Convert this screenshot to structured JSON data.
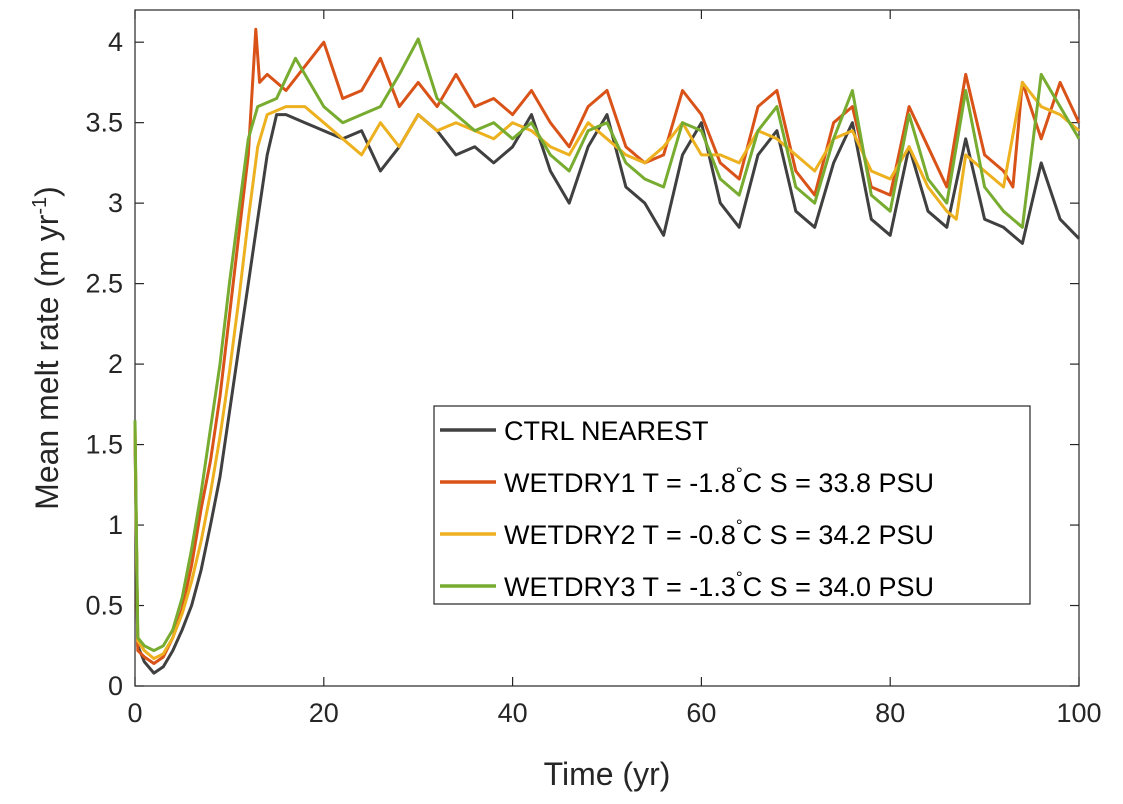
{
  "chart_data": {
    "type": "line",
    "title": "",
    "xlabel": "Time (yr)",
    "ylabel": "Mean melt rate (m yr",
    "ylabel_sup": "-1",
    "ylabel_close": ")",
    "xlim": [
      0,
      100
    ],
    "ylim": [
      0,
      4.2
    ],
    "xticks": [
      0,
      20,
      40,
      60,
      80,
      100
    ],
    "yticks": [
      0,
      0.5,
      1,
      1.5,
      2,
      2.5,
      3,
      3.5,
      4
    ],
    "xtick_labels": [
      "0",
      "20",
      "40",
      "60",
      "80",
      "100"
    ],
    "ytick_labels": [
      "0",
      "0.5",
      "1",
      "1.5",
      "2",
      "2.5",
      "3",
      "3.5",
      "4"
    ],
    "grid": false,
    "legend_position": "lower-right",
    "series": [
      {
        "name": "CTRL NEAREST",
        "color": "#404040",
        "points": [
          [
            0,
            1.55
          ],
          [
            0.3,
            0.25
          ],
          [
            1,
            0.15
          ],
          [
            2,
            0.08
          ],
          [
            3,
            0.12
          ],
          [
            4,
            0.22
          ],
          [
            5,
            0.35
          ],
          [
            6,
            0.5
          ],
          [
            7,
            0.72
          ],
          [
            8,
            1.0
          ],
          [
            9,
            1.3
          ],
          [
            10,
            1.7
          ],
          [
            11,
            2.1
          ],
          [
            12,
            2.5
          ],
          [
            13,
            2.9
          ],
          [
            14,
            3.3
          ],
          [
            15,
            3.55
          ],
          [
            16,
            3.55
          ],
          [
            18,
            3.5
          ],
          [
            20,
            3.45
          ],
          [
            22,
            3.4
          ],
          [
            24,
            3.45
          ],
          [
            26,
            3.2
          ],
          [
            28,
            3.35
          ],
          [
            30,
            3.55
          ],
          [
            32,
            3.45
          ],
          [
            34,
            3.3
          ],
          [
            36,
            3.35
          ],
          [
            38,
            3.25
          ],
          [
            40,
            3.35
          ],
          [
            42,
            3.55
          ],
          [
            44,
            3.2
          ],
          [
            46,
            3.0
          ],
          [
            48,
            3.35
          ],
          [
            50,
            3.55
          ],
          [
            52,
            3.1
          ],
          [
            54,
            3.0
          ],
          [
            56,
            2.8
          ],
          [
            58,
            3.3
          ],
          [
            60,
            3.5
          ],
          [
            62,
            3.0
          ],
          [
            64,
            2.85
          ],
          [
            66,
            3.3
          ],
          [
            68,
            3.45
          ],
          [
            70,
            2.95
          ],
          [
            72,
            2.85
          ],
          [
            74,
            3.25
          ],
          [
            76,
            3.5
          ],
          [
            78,
            2.9
          ],
          [
            80,
            2.8
          ],
          [
            82,
            3.35
          ],
          [
            84,
            2.95
          ],
          [
            86,
            2.85
          ],
          [
            88,
            3.4
          ],
          [
            90,
            2.9
          ],
          [
            92,
            2.85
          ],
          [
            94,
            2.75
          ],
          [
            96,
            3.25
          ],
          [
            98,
            2.9
          ],
          [
            100,
            2.78
          ]
        ]
      },
      {
        "name": "WETDRY1 T = -1.8",
        "name_sup": "°",
        "name_rest": "C S = 33.8 PSU",
        "color": "#d95319",
        "points": [
          [
            0,
            1.6
          ],
          [
            0.3,
            0.22
          ],
          [
            1,
            0.18
          ],
          [
            2,
            0.14
          ],
          [
            3,
            0.18
          ],
          [
            4,
            0.3
          ],
          [
            5,
            0.48
          ],
          [
            6,
            0.75
          ],
          [
            7,
            1.1
          ],
          [
            8,
            1.4
          ],
          [
            9,
            1.8
          ],
          [
            10,
            2.3
          ],
          [
            11,
            2.8
          ],
          [
            12,
            3.3
          ],
          [
            12.8,
            4.08
          ],
          [
            13.2,
            3.75
          ],
          [
            14,
            3.8
          ],
          [
            16,
            3.7
          ],
          [
            18,
            3.85
          ],
          [
            20,
            4.0
          ],
          [
            22,
            3.65
          ],
          [
            24,
            3.7
          ],
          [
            26,
            3.9
          ],
          [
            28,
            3.6
          ],
          [
            30,
            3.75
          ],
          [
            32,
            3.6
          ],
          [
            34,
            3.8
          ],
          [
            36,
            3.6
          ],
          [
            38,
            3.65
          ],
          [
            40,
            3.55
          ],
          [
            42,
            3.7
          ],
          [
            44,
            3.5
          ],
          [
            46,
            3.35
          ],
          [
            48,
            3.6
          ],
          [
            50,
            3.7
          ],
          [
            52,
            3.35
          ],
          [
            54,
            3.25
          ],
          [
            56,
            3.3
          ],
          [
            58,
            3.7
          ],
          [
            60,
            3.55
          ],
          [
            62,
            3.25
          ],
          [
            64,
            3.15
          ],
          [
            66,
            3.6
          ],
          [
            68,
            3.7
          ],
          [
            70,
            3.2
          ],
          [
            72,
            3.05
          ],
          [
            74,
            3.5
          ],
          [
            76,
            3.6
          ],
          [
            78,
            3.1
          ],
          [
            80,
            3.05
          ],
          [
            82,
            3.6
          ],
          [
            84,
            3.35
          ],
          [
            86,
            3.1
          ],
          [
            88,
            3.8
          ],
          [
            90,
            3.3
          ],
          [
            92,
            3.2
          ],
          [
            93,
            3.1
          ],
          [
            94,
            3.75
          ],
          [
            96,
            3.4
          ],
          [
            98,
            3.75
          ],
          [
            100,
            3.5
          ]
        ]
      },
      {
        "name": "WETDRY2 T = -0.8",
        "name_sup": "°",
        "name_rest": "C S = 34.2 PSU",
        "color": "#edb120",
        "points": [
          [
            0,
            1.62
          ],
          [
            0.3,
            0.28
          ],
          [
            1,
            0.22
          ],
          [
            2,
            0.17
          ],
          [
            3,
            0.2
          ],
          [
            4,
            0.3
          ],
          [
            5,
            0.45
          ],
          [
            6,
            0.65
          ],
          [
            7,
            0.9
          ],
          [
            8,
            1.2
          ],
          [
            9,
            1.55
          ],
          [
            10,
            1.95
          ],
          [
            11,
            2.4
          ],
          [
            12,
            2.9
          ],
          [
            13,
            3.35
          ],
          [
            14,
            3.55
          ],
          [
            16,
            3.6
          ],
          [
            18,
            3.6
          ],
          [
            20,
            3.5
          ],
          [
            22,
            3.4
          ],
          [
            24,
            3.3
          ],
          [
            26,
            3.5
          ],
          [
            28,
            3.35
          ],
          [
            30,
            3.55
          ],
          [
            32,
            3.45
          ],
          [
            34,
            3.5
          ],
          [
            36,
            3.45
          ],
          [
            38,
            3.4
          ],
          [
            40,
            3.5
          ],
          [
            42,
            3.45
          ],
          [
            44,
            3.35
          ],
          [
            46,
            3.3
          ],
          [
            48,
            3.5
          ],
          [
            50,
            3.4
          ],
          [
            52,
            3.3
          ],
          [
            54,
            3.25
          ],
          [
            56,
            3.35
          ],
          [
            58,
            3.5
          ],
          [
            60,
            3.3
          ],
          [
            62,
            3.3
          ],
          [
            64,
            3.25
          ],
          [
            66,
            3.45
          ],
          [
            68,
            3.4
          ],
          [
            70,
            3.3
          ],
          [
            72,
            3.2
          ],
          [
            74,
            3.4
          ],
          [
            76,
            3.45
          ],
          [
            78,
            3.2
          ],
          [
            80,
            3.15
          ],
          [
            82,
            3.35
          ],
          [
            84,
            3.1
          ],
          [
            86,
            2.95
          ],
          [
            87,
            2.9
          ],
          [
            88,
            3.3
          ],
          [
            90,
            3.2
          ],
          [
            92,
            3.1
          ],
          [
            94,
            3.75
          ],
          [
            96,
            3.6
          ],
          [
            98,
            3.55
          ],
          [
            100,
            3.45
          ]
        ]
      },
      {
        "name": "WETDRY3 T = -1.3",
        "name_sup": "°",
        "name_rest": "C S = 34.0 PSU",
        "color": "#77ac30",
        "points": [
          [
            0,
            1.65
          ],
          [
            0.3,
            0.3
          ],
          [
            1,
            0.25
          ],
          [
            2,
            0.22
          ],
          [
            3,
            0.25
          ],
          [
            4,
            0.35
          ],
          [
            5,
            0.55
          ],
          [
            6,
            0.85
          ],
          [
            7,
            1.2
          ],
          [
            8,
            1.6
          ],
          [
            9,
            2.0
          ],
          [
            10,
            2.5
          ],
          [
            11,
            2.95
          ],
          [
            12,
            3.4
          ],
          [
            13,
            3.6
          ],
          [
            15,
            3.65
          ],
          [
            17,
            3.9
          ],
          [
            18,
            3.8
          ],
          [
            20,
            3.6
          ],
          [
            22,
            3.5
          ],
          [
            24,
            3.55
          ],
          [
            26,
            3.6
          ],
          [
            28,
            3.8
          ],
          [
            30,
            4.02
          ],
          [
            32,
            3.65
          ],
          [
            34,
            3.55
          ],
          [
            36,
            3.45
          ],
          [
            38,
            3.5
          ],
          [
            40,
            3.4
          ],
          [
            42,
            3.5
          ],
          [
            44,
            3.3
          ],
          [
            46,
            3.2
          ],
          [
            48,
            3.45
          ],
          [
            50,
            3.5
          ],
          [
            52,
            3.25
          ],
          [
            54,
            3.15
          ],
          [
            56,
            3.1
          ],
          [
            58,
            3.5
          ],
          [
            60,
            3.45
          ],
          [
            62,
            3.15
          ],
          [
            64,
            3.05
          ],
          [
            66,
            3.45
          ],
          [
            68,
            3.6
          ],
          [
            70,
            3.1
          ],
          [
            72,
            3.0
          ],
          [
            74,
            3.4
          ],
          [
            76,
            3.7
          ],
          [
            78,
            3.05
          ],
          [
            80,
            2.95
          ],
          [
            82,
            3.55
          ],
          [
            84,
            3.15
          ],
          [
            86,
            3.0
          ],
          [
            88,
            3.7
          ],
          [
            90,
            3.1
          ],
          [
            92,
            2.95
          ],
          [
            94,
            2.85
          ],
          [
            96,
            3.8
          ],
          [
            98,
            3.6
          ],
          [
            100,
            3.4
          ]
        ]
      }
    ]
  }
}
